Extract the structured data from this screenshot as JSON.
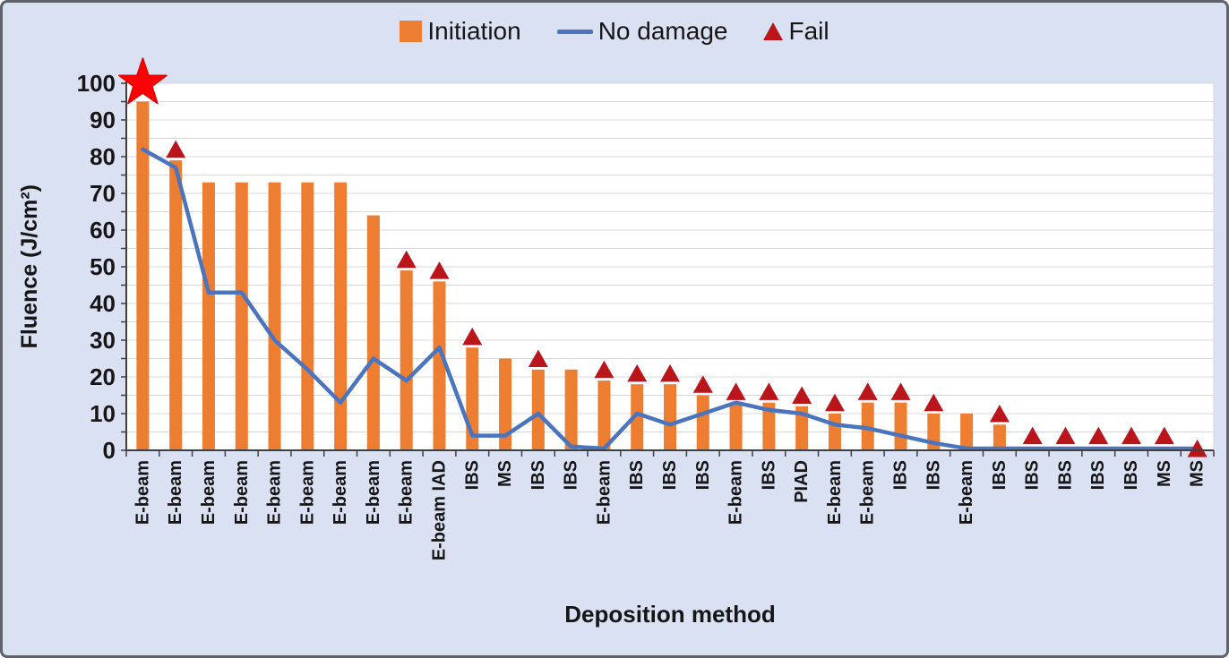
{
  "legend": [
    {
      "label": "Initiation",
      "swatch": "bar-swatch-icon"
    },
    {
      "label": "No damage",
      "swatch": "line-swatch-icon"
    },
    {
      "label": "Fail",
      "swatch": "triangle-swatch-icon"
    }
  ],
  "axes": {
    "y_title": "Fluence (J/cm²)",
    "x_title": "Deposition method",
    "y_tick_labels": [
      "0",
      "10",
      "20",
      "30",
      "40",
      "50",
      "60",
      "70",
      "80",
      "90",
      "100"
    ]
  },
  "chart_data": {
    "type": "bar",
    "title": "",
    "xlabel": "Deposition method",
    "ylabel": "Fluence (J/cm²)",
    "ylim": [
      0,
      100
    ],
    "grid": "horizontal, every 5 units, light gray",
    "legend_position": "top-center",
    "categories": [
      "E-beam",
      "E-beam",
      "E-beam",
      "E-beam",
      "E-beam",
      "E-beam",
      "E-beam",
      "E-beam",
      "E-beam",
      "E-beam IAD",
      "IBS",
      "MS",
      "IBS",
      "IBS",
      "E-beam",
      "IBS",
      "IBS",
      "IBS",
      "E-beam",
      "IBS",
      "PIAD",
      "E-beam",
      "E-beam",
      "IBS",
      "IBS",
      "E-beam",
      "IBS",
      "IBS",
      "IBS",
      "IBS",
      "IBS",
      "MS",
      "MS"
    ],
    "series": [
      {
        "name": "Initiation",
        "type": "bar",
        "color": "#ED7D31",
        "values": [
          95,
          79,
          73,
          73,
          73,
          73,
          73,
          64,
          49,
          46,
          28,
          25,
          22,
          22,
          19,
          18,
          18,
          15,
          13,
          13,
          12,
          10,
          13,
          13,
          10,
          10,
          7,
          0,
          0,
          0,
          0,
          0,
          0
        ]
      },
      {
        "name": "No damage",
        "type": "line",
        "color": "#4A74BD",
        "values": [
          82,
          77,
          43,
          43,
          30,
          22,
          13,
          25,
          19,
          28,
          4,
          4,
          10,
          1,
          0.5,
          10,
          7,
          10,
          13,
          11,
          10,
          7,
          6,
          4,
          2,
          0.5,
          0.5,
          0.5,
          0.5,
          0.5,
          0.5,
          0.5,
          0.5
        ]
      },
      {
        "name": "Fail",
        "type": "scatter",
        "marker": "triangle-up",
        "color": "#B9151B",
        "values": [
          null,
          82,
          null,
          null,
          null,
          null,
          null,
          null,
          52,
          49,
          31,
          null,
          25,
          null,
          22,
          21,
          21,
          18,
          16,
          16,
          15,
          13,
          16,
          16,
          13,
          null,
          10,
          4,
          4,
          4,
          4,
          4,
          0.5
        ]
      }
    ],
    "annotations": [
      {
        "type": "star",
        "name": "red-star-marker",
        "category_index": 0,
        "value": 100,
        "color": "#FB0204",
        "meaning": "highlight on tallest bar"
      }
    ]
  },
  "colors": {
    "page_background": "#d9e1f2",
    "plot_background": "#ffffff",
    "gridline": "#d8d8d8",
    "axis_line": "#3f3f3f",
    "bar": "#ED7D31",
    "line": "#4A74BD",
    "fail_marker": "#B9151B",
    "star": "#FB0204",
    "text": "#161616",
    "outer_border": "#5f6368"
  }
}
